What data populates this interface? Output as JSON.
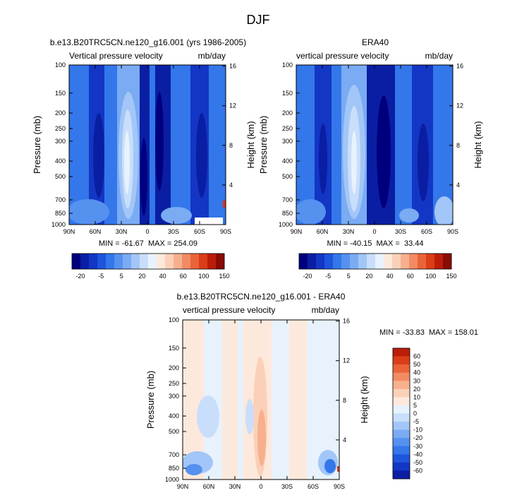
{
  "page_title": "DJF",
  "colors": {
    "scale_top": [
      "#00007f",
      "#0a1ea3",
      "#1336c4",
      "#1e55dc",
      "#3377ea",
      "#5591ef",
      "#7aabf3",
      "#a2c6f7",
      "#c9defa",
      "#e8f2fd",
      "#fde9dc",
      "#fbd0b8",
      "#f7b08d",
      "#f28b63",
      "#ea6339",
      "#db3d17",
      "#bb1d08",
      "#8b0a04"
    ],
    "scale_diff": [
      "#00007f",
      "#0a1ea3",
      "#1336c4",
      "#1e55dc",
      "#3377ea",
      "#5591ef",
      "#7aabf3",
      "#a2c6f7",
      "#c9defa",
      "#e8f2fd",
      "#fde9dc",
      "#fbd0b8",
      "#f7b08d",
      "#f28b63",
      "#ea6339",
      "#db3d17",
      "#bb1d08",
      "#8b0a04"
    ]
  },
  "chart_data": [
    {
      "id": "model",
      "type": "heatmap",
      "title": "b.e13.B20TRC5CN.ne120_g16.001 (yrs 1986-2005)",
      "left_string": "Vertical pressure velocity",
      "right_string": "mb/day",
      "xlabel": "",
      "ylabel": "Pressure (mb)",
      "ylabel_right": "Height (km)",
      "x_ticks": [
        "90N",
        "60N",
        "30N",
        "0",
        "30S",
        "60S",
        "90S"
      ],
      "x_values": [
        90,
        60,
        30,
        0,
        -30,
        -60,
        -90
      ],
      "y_ticks": [
        "100",
        "150",
        "200",
        "250",
        "300",
        "400",
        "500",
        "700",
        "850",
        "1000"
      ],
      "y_values": [
        100,
        150,
        200,
        250,
        300,
        400,
        500,
        700,
        850,
        1000
      ],
      "y_right_ticks": [
        "16",
        "12",
        "8",
        "4"
      ],
      "y_right_values": [
        16,
        12,
        8,
        4
      ],
      "stats": "MIN = -61.67  MAX = 254.09",
      "min": -61.67,
      "max": 254.09
    },
    {
      "id": "obs",
      "type": "heatmap",
      "title": "ERA40",
      "left_string": "vertical pressure velocity",
      "right_string": "mb/day",
      "xlabel": "",
      "ylabel": "Pressure (mb)",
      "ylabel_right": "Height (km)",
      "x_ticks": [
        "90N",
        "60N",
        "30N",
        "0",
        "30S",
        "60S",
        "90S"
      ],
      "x_values": [
        90,
        60,
        30,
        0,
        -30,
        -60,
        -90
      ],
      "y_ticks": [
        "100",
        "150",
        "200",
        "250",
        "300",
        "400",
        "500",
        "700",
        "850",
        "1000"
      ],
      "y_values": [
        100,
        150,
        200,
        250,
        300,
        400,
        500,
        700,
        850,
        1000
      ],
      "y_right_ticks": [
        "16",
        "12",
        "8",
        "4"
      ],
      "y_right_values": [
        16,
        12,
        8,
        4
      ],
      "stats": "MIN = -40.15  MAX =  33.44",
      "min": -40.15,
      "max": 33.44
    },
    {
      "id": "diff",
      "type": "heatmap",
      "title": "b.e13.B20TRC5CN.ne120_g16.001 - ERA40",
      "left_string": "vertical pressure velocity",
      "right_string": "mb/day",
      "xlabel": "",
      "ylabel": "Pressure (mb)",
      "ylabel_right": "Height (km)",
      "x_ticks": [
        "90N",
        "60N",
        "30N",
        "0",
        "30S",
        "60S",
        "90S"
      ],
      "x_values": [
        90,
        60,
        30,
        0,
        -30,
        -60,
        -90
      ],
      "y_ticks": [
        "100",
        "150",
        "200",
        "250",
        "300",
        "400",
        "500",
        "700",
        "850",
        "1000"
      ],
      "y_values": [
        100,
        150,
        200,
        250,
        300,
        400,
        500,
        700,
        850,
        1000
      ],
      "y_right_ticks": [
        "16",
        "12",
        "8",
        "4"
      ],
      "y_right_values": [
        16,
        12,
        8,
        4
      ],
      "stats": "MIN = -33.83  MAX = 158.01",
      "min": -33.83,
      "max": 158.01
    }
  ],
  "colorbar_top": {
    "labels": [
      "-20",
      "-5",
      "5",
      "20",
      "40",
      "60",
      "100",
      "150"
    ]
  },
  "colorbar_diff": {
    "labels": [
      "60",
      "50",
      "40",
      "30",
      "20",
      "10",
      "5",
      "0",
      "-5",
      "-10",
      "-20",
      "-30",
      "-40",
      "-50",
      "-60"
    ]
  }
}
